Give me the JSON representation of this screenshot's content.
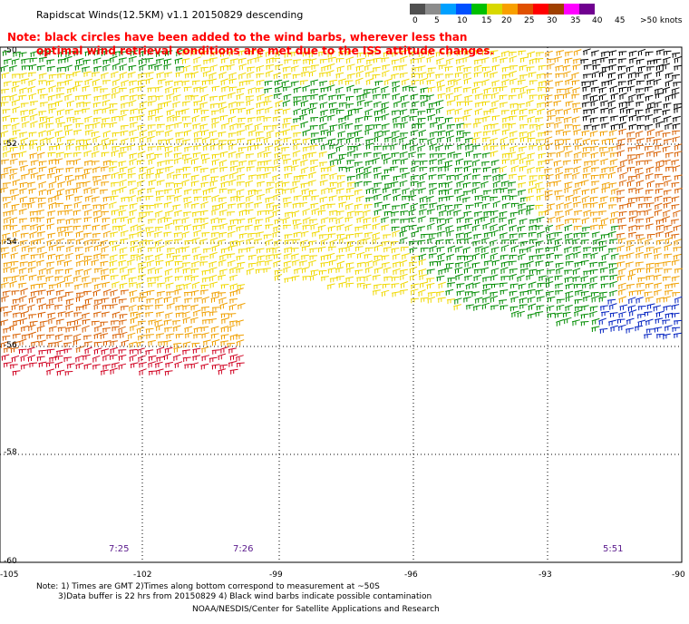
{
  "title": "Rapidscat Winds(12.5KM) v1.1 20150829 descending",
  "note_line1": "Note: black circles have been added to the wind barbs, wherever less than",
  "note_line2": "optimal wind retrieval conditions are met due to the ISS attitude changes.",
  "legend": {
    "labels": [
      "0",
      "5",
      "10",
      "15",
      "20",
      "25",
      "30",
      "35",
      "40",
      "45",
      ">50 knots"
    ],
    "colors": [
      "#505050",
      "#8c8c8c",
      "#00a0ff",
      "#0050ff",
      "#00c000",
      "#d8d800",
      "#f8a000",
      "#e05000",
      "#ff0000",
      "#a04000",
      "#ff00ff",
      "#700090"
    ]
  },
  "lat_labels": [
    "-50",
    "-52",
    "-54",
    "-56",
    "-58",
    "-60"
  ],
  "lon_labels": [
    "-105",
    "-102",
    "-99",
    "-96",
    "-93",
    "-90"
  ],
  "times": [
    "7:25",
    "7:26",
    "5:51"
  ],
  "footnote1": "Note: 1) Times are GMT 2)Times along bottom correspond to measurement at ~50S",
  "footnote2": "3)Data buffer is 22 hrs from 20150829 4) Black wind barbs indicate possible contamination",
  "credit": "NOAA/NESDIS/Center for Satellite Applications and Research",
  "barb_palette": {
    "green": "#008c00",
    "yellow": "#f0d800",
    "orange": "#f0a000",
    "darkorange": "#d86000",
    "red": "#d00020",
    "blue": "#0020c0",
    "black": "#000000"
  }
}
